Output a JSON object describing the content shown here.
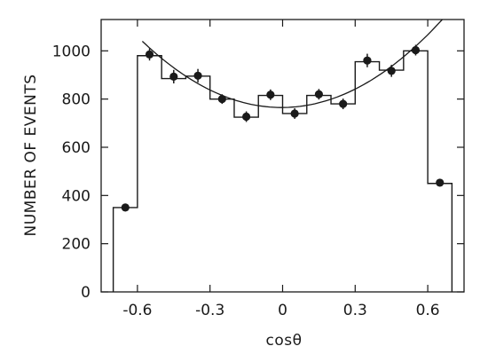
{
  "chart_data": {
    "type": "histogram",
    "xlabel": "cosθ",
    "ylabel": "NUMBER OF EVENTS",
    "xlim": [
      -0.75,
      0.75
    ],
    "ylim": [
      0,
      1130
    ],
    "xticks": [
      -0.6,
      -0.3,
      0,
      0.3,
      0.6
    ],
    "xtick_labels": [
      "-0.6",
      "-0.3",
      "0",
      "0.3",
      "0.6"
    ],
    "yticks": [
      0,
      200,
      400,
      600,
      800,
      1000
    ],
    "ytick_labels": [
      "0",
      "200",
      "400",
      "600",
      "800",
      "1000"
    ],
    "grid": false,
    "histogram": {
      "bin_edges": [
        -0.7,
        -0.6,
        -0.5,
        -0.4,
        -0.3,
        -0.2,
        -0.1,
        0.0,
        0.1,
        0.2,
        0.3,
        0.4,
        0.5,
        0.6,
        0.7
      ],
      "values": [
        350,
        980,
        885,
        895,
        800,
        725,
        815,
        740,
        815,
        780,
        955,
        920,
        1000,
        450
      ]
    },
    "data_points": {
      "x": [
        -0.65,
        -0.55,
        -0.45,
        -0.35,
        -0.25,
        -0.15,
        -0.05,
        0.05,
        0.15,
        0.25,
        0.35,
        0.45,
        0.55,
        0.65
      ],
      "y": [
        350,
        985,
        893,
        897,
        800,
        727,
        818,
        740,
        820,
        780,
        960,
        917,
        1003,
        453
      ],
      "error": [
        12,
        25,
        28,
        28,
        20,
        22,
        22,
        22,
        22,
        22,
        28,
        25,
        22,
        12
      ]
    },
    "fit_curve": {
      "x_range": [
        -0.58,
        0.66
      ],
      "y_at_zero": 765,
      "y_at_left_end": 1040,
      "y_at_right_end": 1130
    }
  }
}
